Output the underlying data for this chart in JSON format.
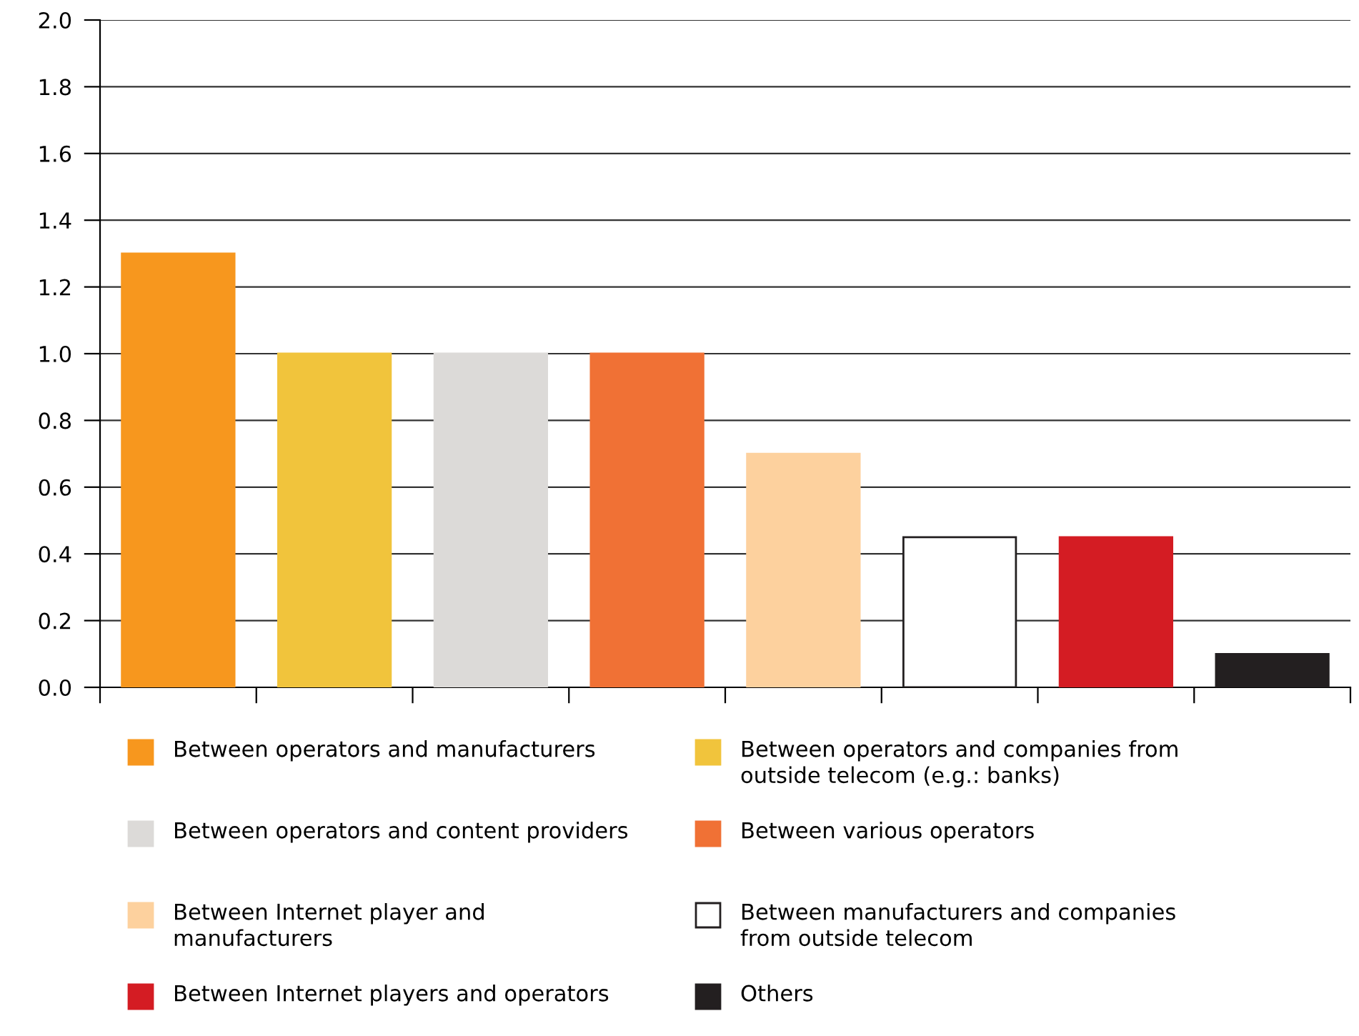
{
  "chart_data": {
    "type": "bar",
    "categories": [
      null,
      null,
      null,
      null,
      null,
      null,
      null,
      null
    ],
    "series": [
      {
        "name": "Between operators and manufacturers",
        "color": "#f7971e",
        "values": [
          1.3,
          null,
          null,
          null,
          null,
          null,
          null,
          null
        ]
      },
      {
        "name": "Between operators and companies from outside telecom (e.g.: banks)",
        "color": "#f1c43c",
        "values": [
          null,
          1.0,
          null,
          null,
          null,
          null,
          null,
          null
        ]
      },
      {
        "name": "Between operators and content providers",
        "color": "#dcdad8",
        "values": [
          null,
          null,
          1.0,
          null,
          null,
          null,
          null,
          null
        ]
      },
      {
        "name": "Between various operators",
        "color": "#f07135",
        "values": [
          null,
          null,
          null,
          1.0,
          null,
          null,
          null,
          null
        ]
      },
      {
        "name": "Between Internet player and manufacturers",
        "color": "#fdd19e",
        "values": [
          null,
          null,
          null,
          null,
          0.7,
          null,
          null,
          null
        ]
      },
      {
        "name": "Between manufacturers and companies from outside telecom",
        "color": "#ffffff",
        "values": [
          null,
          null,
          null,
          null,
          null,
          0.45,
          null,
          null
        ]
      },
      {
        "name": "Between Internet players and operators",
        "color": "#d41c23",
        "values": [
          null,
          null,
          null,
          null,
          null,
          null,
          0.45,
          null
        ]
      },
      {
        "name": "Others",
        "color": "#231f20",
        "values": [
          null,
          null,
          null,
          null,
          null,
          null,
          null,
          0.1
        ]
      }
    ],
    "ylim": [
      0,
      2.0
    ],
    "yticks": [
      {
        "value": 0,
        "label": "0.0"
      },
      0.2,
      0.4,
      0.6,
      0.8,
      {
        "value": 1,
        "label": "1.0"
      },
      1.2,
      1.4,
      1.6,
      1.8,
      {
        "value": 2,
        "label": "2.0"
      }
    ],
    "grid": "y",
    "legend": "bottom"
  }
}
